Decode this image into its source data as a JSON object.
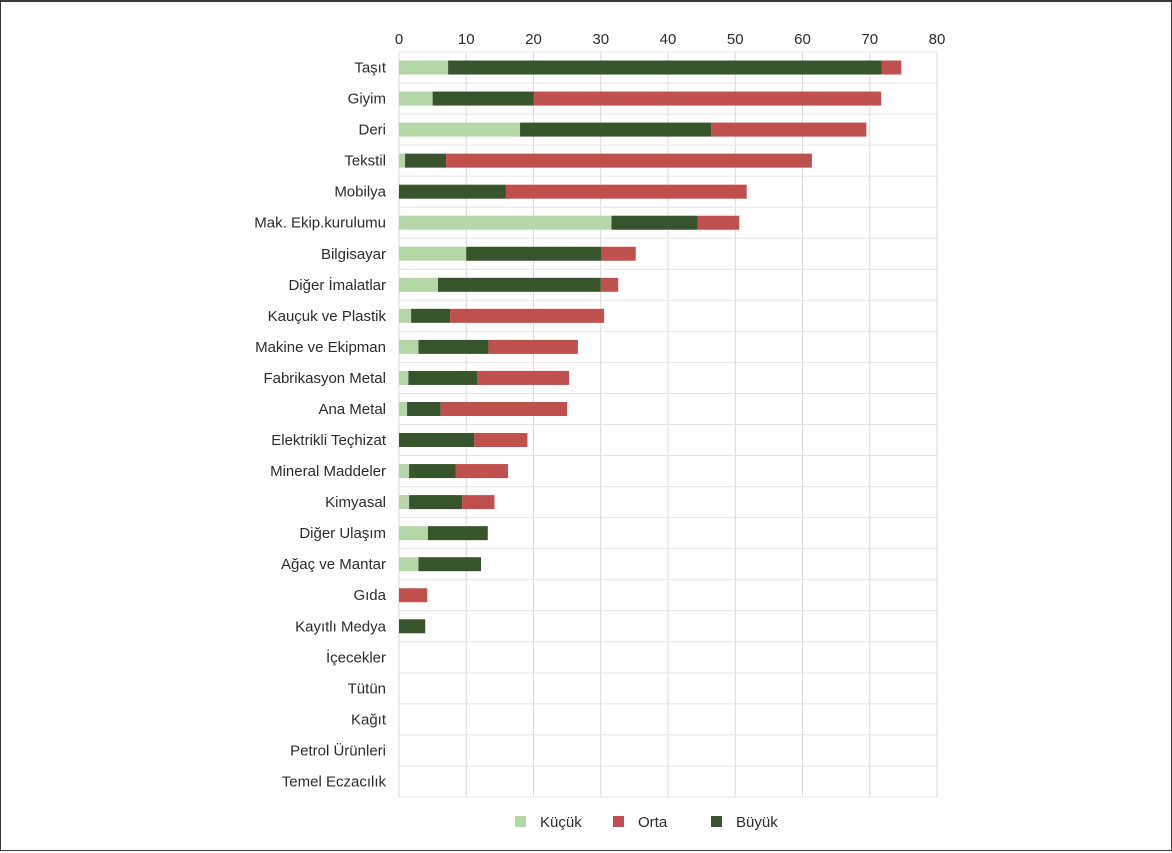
{
  "chart_data": {
    "type": "bar",
    "orientation": "horizontal",
    "stacked": true,
    "title": "",
    "xlabel": "",
    "ylabel": "",
    "xlim": [
      0,
      80
    ],
    "ticks": [
      0,
      10,
      20,
      30,
      40,
      50,
      60,
      70,
      80
    ],
    "grid": true,
    "legend_position": "bottom",
    "categories": [
      "Taşıt",
      "Giyim",
      "Deri",
      "Tekstil",
      "Mobilya",
      "Mak. Ekip.kurulumu",
      "Bilgisayar",
      "Diğer İmalatlar",
      "Kauçuk ve Plastik",
      "Makine ve Ekipman",
      "Fabrikasyon Metal",
      "Ana Metal",
      "Elektrikli Teçhizat",
      "Mineral Maddeler",
      "Kimyasal",
      "Diğer Ulaşım",
      "Ağaç ve Mantar",
      "Gıda",
      "Kayıtlı Medya",
      "İçecekler",
      "Tütün",
      "Kağıt",
      "Petrol Ürünleri",
      "Temel Eczacılık"
    ],
    "series": [
      {
        "name": "Küçük",
        "color": "#b5d7a8",
        "values": [
          7.3,
          5.0,
          18.0,
          0.9,
          0,
          31.6,
          10.0,
          5.8,
          1.8,
          2.9,
          1.4,
          1.2,
          0,
          1.5,
          1.5,
          4.3,
          2.9,
          0,
          0,
          0,
          0,
          0,
          0,
          0
        ]
      },
      {
        "name": "Büyük",
        "color": "#38542c",
        "values": [
          64.5,
          15.0,
          28.4,
          6.1,
          15.9,
          12.8,
          20.1,
          24.2,
          5.8,
          10.4,
          10.2,
          5.0,
          11.2,
          6.9,
          7.9,
          8.9,
          9.3,
          0,
          3.9,
          0,
          0,
          0,
          0,
          0
        ]
      },
      {
        "name": "Orta",
        "color": "#c0504d",
        "values": [
          2.9,
          51.7,
          23.1,
          54.4,
          35.8,
          6.2,
          5.1,
          2.6,
          22.9,
          13.3,
          13.7,
          18.8,
          7.9,
          7.8,
          4.8,
          0,
          0,
          4.2,
          0,
          0,
          0,
          0,
          0,
          0
        ]
      }
    ],
    "legend": [
      {
        "name": "Küçük",
        "color": "#b5d7a8"
      },
      {
        "name": "Orta",
        "color": "#c0504d"
      },
      {
        "name": "Büyük",
        "color": "#38542c"
      }
    ]
  }
}
